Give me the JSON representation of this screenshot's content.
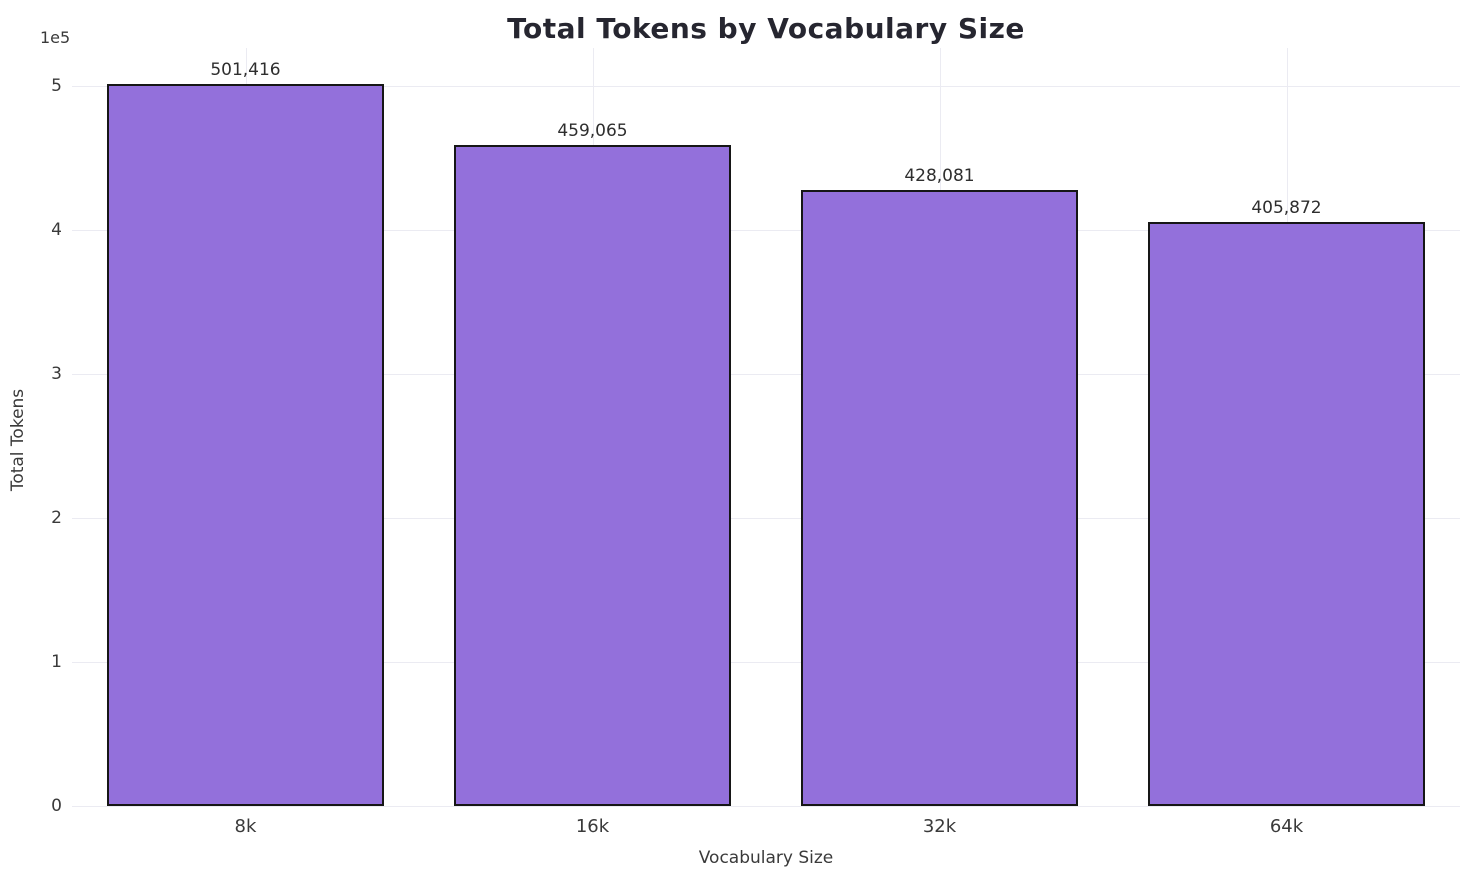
{
  "chart_data": {
    "type": "bar",
    "title": "Total Tokens by Vocabulary Size",
    "xlabel": "Vocabulary Size",
    "ylabel": "Total Tokens",
    "y_offset_label": "1e5",
    "categories": [
      "8k",
      "16k",
      "32k",
      "64k"
    ],
    "values": [
      501416,
      459065,
      428081,
      405872
    ],
    "value_labels": [
      "501,416",
      "459,065",
      "428,081",
      "405,872"
    ],
    "ylim": [
      0,
      526486
    ],
    "yticks": [
      {
        "label": "0",
        "value": 0
      },
      {
        "label": "1",
        "value": 100000
      },
      {
        "label": "2",
        "value": 200000
      },
      {
        "label": "3",
        "value": 300000
      },
      {
        "label": "4",
        "value": 400000
      },
      {
        "label": "5",
        "value": 500000
      }
    ],
    "grid": "on",
    "legend": "none",
    "colors": {
      "bar_fill": "#9370DB",
      "bar_edge": "#161616",
      "grid_line": "#ebebf2",
      "title_text": "#262630",
      "axis_text": "#3a3a3a",
      "background": "#ffffff"
    }
  }
}
